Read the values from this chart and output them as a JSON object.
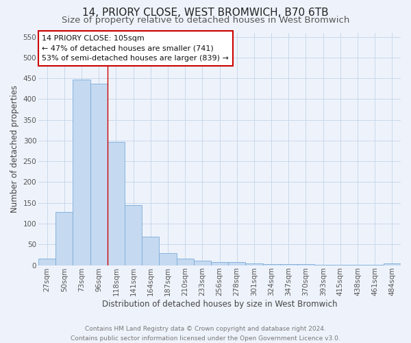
{
  "title": "14, PRIORY CLOSE, WEST BROMWICH, B70 6TB",
  "subtitle": "Size of property relative to detached houses in West Bromwich",
  "xlabel": "Distribution of detached houses by size in West Bromwich",
  "ylabel": "Number of detached properties",
  "categories": [
    "27sqm",
    "50sqm",
    "73sqm",
    "96sqm",
    "118sqm",
    "141sqm",
    "164sqm",
    "187sqm",
    "210sqm",
    "233sqm",
    "256sqm",
    "278sqm",
    "301sqm",
    "324sqm",
    "347sqm",
    "370sqm",
    "393sqm",
    "415sqm",
    "438sqm",
    "461sqm",
    "484sqm"
  ],
  "values": [
    15,
    128,
    447,
    437,
    297,
    145,
    68,
    29,
    15,
    10,
    7,
    7,
    4,
    3,
    2,
    2,
    1,
    1,
    1,
    1,
    5
  ],
  "bar_color": "#c5d9f0",
  "bar_edgecolor": "#7aacda",
  "grid_color": "#c8d8ea",
  "background_color": "#eef3fb",
  "vline_x": 3.5,
  "vline_color": "#cc0000",
  "annotation_text": "14 PRIORY CLOSE: 105sqm\n← 47% of detached houses are smaller (741)\n53% of semi-detached houses are larger (839) →",
  "annotation_box_edgecolor": "#cc0000",
  "footer_line1": "Contains HM Land Registry data © Crown copyright and database right 2024.",
  "footer_line2": "Contains public sector information licensed under the Open Government Licence v3.0.",
  "ylim": [
    0,
    560
  ],
  "yticks": [
    0,
    50,
    100,
    150,
    200,
    250,
    300,
    350,
    400,
    450,
    500,
    550
  ],
  "title_fontsize": 11,
  "subtitle_fontsize": 9.5,
  "xlabel_fontsize": 8.5,
  "ylabel_fontsize": 8.5,
  "tick_fontsize": 7.5,
  "annotation_fontsize": 8,
  "footer_fontsize": 6.5
}
